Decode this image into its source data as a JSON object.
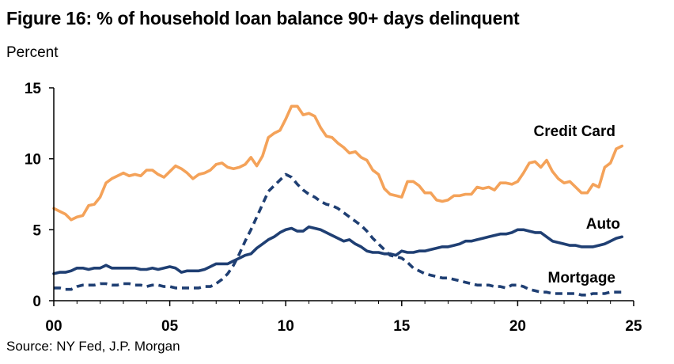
{
  "header": {
    "title": "Figure 16: % of household loan balance 90+ days delinquent",
    "subtitle": "Percent"
  },
  "footer": {
    "source": "Source: NY Fed, J.P. Morgan"
  },
  "colors": {
    "credit_card": "#F4A259",
    "auto": "#1F3F73",
    "mortgage": "#1F3F73",
    "axis": "#000000"
  },
  "chart_data": {
    "type": "line",
    "title": "Figure 16: % of household loan balance 90+ days delinquent",
    "ylabel": "Percent",
    "xlim": [
      0,
      25
    ],
    "ylim": [
      0,
      15
    ],
    "x_ticks": [
      0,
      5,
      10,
      15,
      20,
      25
    ],
    "x_tick_labels": [
      "00",
      "05",
      "10",
      "15",
      "20",
      "25"
    ],
    "y_ticks": [
      0,
      5,
      10,
      15
    ],
    "y_tick_labels": [
      "0",
      "5",
      "10",
      "15"
    ],
    "grid": false,
    "legend": "inline labels",
    "series": [
      {
        "name": "Credit Card",
        "style": "solid",
        "points": [
          [
            0.0,
            6.5
          ],
          [
            0.25,
            6.3
          ],
          [
            0.5,
            6.1
          ],
          [
            0.75,
            5.7
          ],
          [
            1.0,
            5.9
          ],
          [
            1.25,
            6.0
          ],
          [
            1.5,
            6.7
          ],
          [
            1.75,
            6.8
          ],
          [
            2.0,
            7.3
          ],
          [
            2.25,
            8.3
          ],
          [
            2.5,
            8.6
          ],
          [
            2.75,
            8.8
          ],
          [
            3.0,
            9.0
          ],
          [
            3.25,
            8.8
          ],
          [
            3.5,
            8.9
          ],
          [
            3.75,
            8.8
          ],
          [
            4.0,
            9.2
          ],
          [
            4.25,
            9.2
          ],
          [
            4.5,
            8.9
          ],
          [
            4.75,
            8.7
          ],
          [
            5.0,
            9.1
          ],
          [
            5.25,
            9.5
          ],
          [
            5.5,
            9.3
          ],
          [
            5.75,
            9.0
          ],
          [
            6.0,
            8.6
          ],
          [
            6.25,
            8.9
          ],
          [
            6.5,
            9.0
          ],
          [
            6.75,
            9.2
          ],
          [
            7.0,
            9.6
          ],
          [
            7.25,
            9.7
          ],
          [
            7.5,
            9.4
          ],
          [
            7.75,
            9.3
          ],
          [
            8.0,
            9.4
          ],
          [
            8.25,
            9.6
          ],
          [
            8.5,
            10.1
          ],
          [
            8.75,
            9.5
          ],
          [
            9.0,
            10.2
          ],
          [
            9.25,
            11.5
          ],
          [
            9.5,
            11.8
          ],
          [
            9.75,
            12.0
          ],
          [
            10.0,
            12.8
          ],
          [
            10.25,
            13.7
          ],
          [
            10.5,
            13.7
          ],
          [
            10.75,
            13.1
          ],
          [
            11.0,
            13.2
          ],
          [
            11.25,
            13.0
          ],
          [
            11.5,
            12.2
          ],
          [
            11.75,
            11.6
          ],
          [
            12.0,
            11.5
          ],
          [
            12.25,
            11.1
          ],
          [
            12.5,
            10.8
          ],
          [
            12.75,
            10.4
          ],
          [
            13.0,
            10.5
          ],
          [
            13.25,
            10.1
          ],
          [
            13.5,
            9.9
          ],
          [
            13.75,
            9.2
          ],
          [
            14.0,
            8.9
          ],
          [
            14.25,
            7.9
          ],
          [
            14.5,
            7.5
          ],
          [
            14.75,
            7.4
          ],
          [
            15.0,
            7.3
          ],
          [
            15.25,
            8.4
          ],
          [
            15.5,
            8.4
          ],
          [
            15.75,
            8.1
          ],
          [
            16.0,
            7.6
          ],
          [
            16.25,
            7.6
          ],
          [
            16.5,
            7.1
          ],
          [
            16.75,
            7.0
          ],
          [
            17.0,
            7.1
          ],
          [
            17.25,
            7.4
          ],
          [
            17.5,
            7.4
          ],
          [
            17.75,
            7.5
          ],
          [
            18.0,
            7.5
          ],
          [
            18.25,
            8.0
          ],
          [
            18.5,
            7.9
          ],
          [
            18.75,
            8.0
          ],
          [
            19.0,
            7.8
          ],
          [
            19.25,
            8.3
          ],
          [
            19.5,
            8.3
          ],
          [
            19.75,
            8.2
          ],
          [
            20.0,
            8.4
          ],
          [
            20.25,
            9.0
          ],
          [
            20.5,
            9.7
          ],
          [
            20.75,
            9.8
          ],
          [
            21.0,
            9.4
          ],
          [
            21.25,
            9.9
          ],
          [
            21.5,
            9.1
          ],
          [
            21.75,
            8.6
          ],
          [
            22.0,
            8.3
          ],
          [
            22.25,
            8.4
          ],
          [
            22.5,
            8.0
          ],
          [
            22.75,
            7.6
          ],
          [
            23.0,
            7.6
          ],
          [
            23.25,
            8.2
          ],
          [
            23.5,
            8.0
          ],
          [
            23.75,
            9.4
          ],
          [
            24.0,
            9.7
          ],
          [
            24.25,
            10.7
          ],
          [
            24.5,
            10.9
          ]
        ]
      },
      {
        "name": "Auto",
        "style": "solid",
        "points": [
          [
            0.0,
            1.9
          ],
          [
            0.25,
            2.0
          ],
          [
            0.5,
            2.0
          ],
          [
            0.75,
            2.1
          ],
          [
            1.0,
            2.3
          ],
          [
            1.25,
            2.3
          ],
          [
            1.5,
            2.2
          ],
          [
            1.75,
            2.3
          ],
          [
            2.0,
            2.3
          ],
          [
            2.25,
            2.5
          ],
          [
            2.5,
            2.3
          ],
          [
            2.75,
            2.3
          ],
          [
            3.0,
            2.3
          ],
          [
            3.25,
            2.3
          ],
          [
            3.5,
            2.3
          ],
          [
            3.75,
            2.2
          ],
          [
            4.0,
            2.2
          ],
          [
            4.25,
            2.3
          ],
          [
            4.5,
            2.2
          ],
          [
            4.75,
            2.3
          ],
          [
            5.0,
            2.4
          ],
          [
            5.25,
            2.3
          ],
          [
            5.5,
            2.0
          ],
          [
            5.75,
            2.1
          ],
          [
            6.0,
            2.1
          ],
          [
            6.25,
            2.1
          ],
          [
            6.5,
            2.2
          ],
          [
            6.75,
            2.4
          ],
          [
            7.0,
            2.6
          ],
          [
            7.25,
            2.6
          ],
          [
            7.5,
            2.6
          ],
          [
            7.75,
            2.8
          ],
          [
            8.0,
            3.0
          ],
          [
            8.25,
            3.2
          ],
          [
            8.5,
            3.3
          ],
          [
            8.75,
            3.7
          ],
          [
            9.0,
            4.0
          ],
          [
            9.25,
            4.3
          ],
          [
            9.5,
            4.5
          ],
          [
            9.75,
            4.8
          ],
          [
            10.0,
            5.0
          ],
          [
            10.25,
            5.1
          ],
          [
            10.5,
            4.9
          ],
          [
            10.75,
            4.9
          ],
          [
            11.0,
            5.2
          ],
          [
            11.25,
            5.1
          ],
          [
            11.5,
            5.0
          ],
          [
            11.75,
            4.8
          ],
          [
            12.0,
            4.6
          ],
          [
            12.25,
            4.4
          ],
          [
            12.5,
            4.2
          ],
          [
            12.75,
            4.3
          ],
          [
            13.0,
            4.0
          ],
          [
            13.25,
            3.8
          ],
          [
            13.5,
            3.5
          ],
          [
            13.75,
            3.4
          ],
          [
            14.0,
            3.4
          ],
          [
            14.25,
            3.3
          ],
          [
            14.5,
            3.3
          ],
          [
            14.75,
            3.2
          ],
          [
            15.0,
            3.5
          ],
          [
            15.25,
            3.4
          ],
          [
            15.5,
            3.4
          ],
          [
            15.75,
            3.5
          ],
          [
            16.0,
            3.5
          ],
          [
            16.25,
            3.6
          ],
          [
            16.5,
            3.7
          ],
          [
            16.75,
            3.8
          ],
          [
            17.0,
            3.8
          ],
          [
            17.25,
            3.9
          ],
          [
            17.5,
            4.0
          ],
          [
            17.75,
            4.2
          ],
          [
            18.0,
            4.2
          ],
          [
            18.25,
            4.3
          ],
          [
            18.5,
            4.4
          ],
          [
            18.75,
            4.5
          ],
          [
            19.0,
            4.6
          ],
          [
            19.25,
            4.7
          ],
          [
            19.5,
            4.7
          ],
          [
            19.75,
            4.8
          ],
          [
            20.0,
            5.0
          ],
          [
            20.25,
            5.0
          ],
          [
            20.5,
            4.9
          ],
          [
            20.75,
            4.8
          ],
          [
            21.0,
            4.8
          ],
          [
            21.25,
            4.5
          ],
          [
            21.5,
            4.2
          ],
          [
            21.75,
            4.1
          ],
          [
            22.0,
            4.0
          ],
          [
            22.25,
            3.9
          ],
          [
            22.5,
            3.9
          ],
          [
            22.75,
            3.8
          ],
          [
            23.0,
            3.8
          ],
          [
            23.25,
            3.8
          ],
          [
            23.5,
            3.9
          ],
          [
            23.75,
            4.0
          ],
          [
            24.0,
            4.2
          ],
          [
            24.25,
            4.4
          ],
          [
            24.5,
            4.5
          ]
        ]
      },
      {
        "name": "Mortgage",
        "style": "dashed",
        "points": [
          [
            0.0,
            0.9
          ],
          [
            0.25,
            0.9
          ],
          [
            0.5,
            0.8
          ],
          [
            0.75,
            0.8
          ],
          [
            1.0,
            1.0
          ],
          [
            1.25,
            1.1
          ],
          [
            1.5,
            1.1
          ],
          [
            1.75,
            1.1
          ],
          [
            2.0,
            1.2
          ],
          [
            2.25,
            1.2
          ],
          [
            2.5,
            1.1
          ],
          [
            2.75,
            1.1
          ],
          [
            3.0,
            1.2
          ],
          [
            3.25,
            1.2
          ],
          [
            3.5,
            1.1
          ],
          [
            3.75,
            1.1
          ],
          [
            4.0,
            1.0
          ],
          [
            4.25,
            1.1
          ],
          [
            4.5,
            1.1
          ],
          [
            4.75,
            1.0
          ],
          [
            5.0,
            1.0
          ],
          [
            5.25,
            0.9
          ],
          [
            5.5,
            0.9
          ],
          [
            5.75,
            0.9
          ],
          [
            6.0,
            0.9
          ],
          [
            6.25,
            0.9
          ],
          [
            6.5,
            1.0
          ],
          [
            6.75,
            1.0
          ],
          [
            7.0,
            1.2
          ],
          [
            7.25,
            1.5
          ],
          [
            7.5,
            1.9
          ],
          [
            7.75,
            2.5
          ],
          [
            8.0,
            3.3
          ],
          [
            8.25,
            4.2
          ],
          [
            8.5,
            5.0
          ],
          [
            8.75,
            5.9
          ],
          [
            9.0,
            6.8
          ],
          [
            9.25,
            7.7
          ],
          [
            9.5,
            8.1
          ],
          [
            9.75,
            8.5
          ],
          [
            10.0,
            8.9
          ],
          [
            10.25,
            8.7
          ],
          [
            10.5,
            8.2
          ],
          [
            10.75,
            7.8
          ],
          [
            11.0,
            7.5
          ],
          [
            11.25,
            7.3
          ],
          [
            11.5,
            7.0
          ],
          [
            11.75,
            6.8
          ],
          [
            12.0,
            6.7
          ],
          [
            12.25,
            6.5
          ],
          [
            12.5,
            6.2
          ],
          [
            12.75,
            5.9
          ],
          [
            13.0,
            5.6
          ],
          [
            13.25,
            5.3
          ],
          [
            13.5,
            4.9
          ],
          [
            13.75,
            4.4
          ],
          [
            14.0,
            4.0
          ],
          [
            14.25,
            3.6
          ],
          [
            14.5,
            3.2
          ],
          [
            14.75,
            3.1
          ],
          [
            15.0,
            3.0
          ],
          [
            15.25,
            2.7
          ],
          [
            15.5,
            2.3
          ],
          [
            15.75,
            2.1
          ],
          [
            16.0,
            1.9
          ],
          [
            16.25,
            1.8
          ],
          [
            16.5,
            1.7
          ],
          [
            16.75,
            1.6
          ],
          [
            17.0,
            1.6
          ],
          [
            17.25,
            1.5
          ],
          [
            17.5,
            1.4
          ],
          [
            17.75,
            1.3
          ],
          [
            18.0,
            1.2
          ],
          [
            18.25,
            1.1
          ],
          [
            18.5,
            1.1
          ],
          [
            18.75,
            1.1
          ],
          [
            19.0,
            1.0
          ],
          [
            19.25,
            1.0
          ],
          [
            19.5,
            0.9
          ],
          [
            19.75,
            1.1
          ],
          [
            20.0,
            1.1
          ],
          [
            20.25,
            1.0
          ],
          [
            20.5,
            0.8
          ],
          [
            20.75,
            0.7
          ],
          [
            21.0,
            0.6
          ],
          [
            21.25,
            0.6
          ],
          [
            21.5,
            0.5
          ],
          [
            21.75,
            0.5
          ],
          [
            22.0,
            0.5
          ],
          [
            22.25,
            0.5
          ],
          [
            22.5,
            0.5
          ],
          [
            22.75,
            0.4
          ],
          [
            23.0,
            0.4
          ],
          [
            23.25,
            0.5
          ],
          [
            23.5,
            0.5
          ],
          [
            23.75,
            0.5
          ],
          [
            24.0,
            0.6
          ],
          [
            24.25,
            0.6
          ],
          [
            24.5,
            0.6
          ]
        ]
      }
    ]
  }
}
